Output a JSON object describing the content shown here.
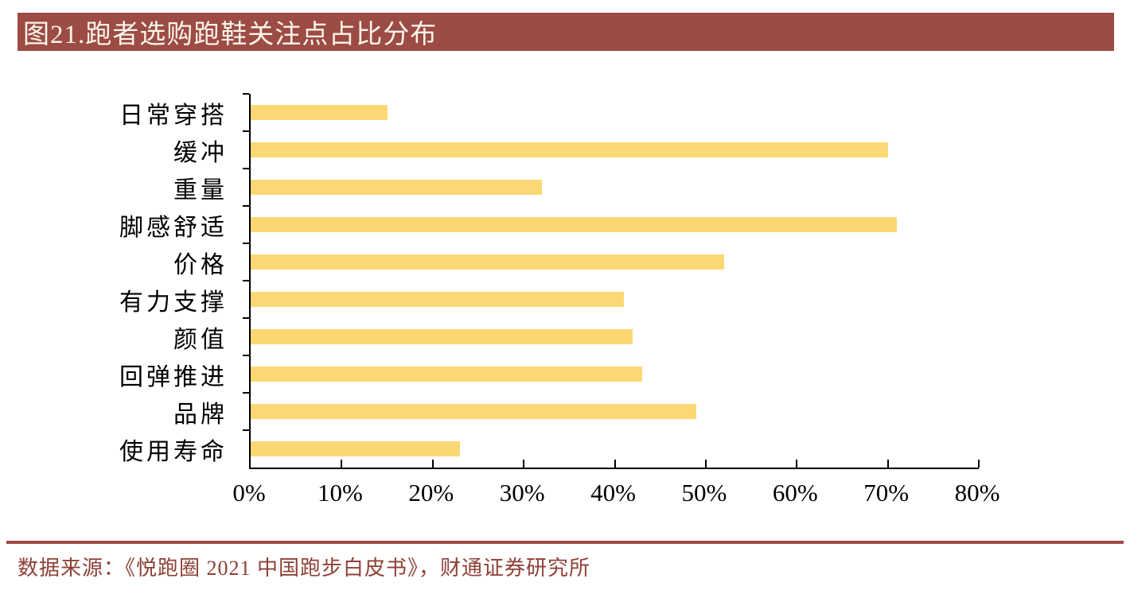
{
  "figure": {
    "title": "图21.跑者选购跑鞋关注点占比分布",
    "source_note": "数据来源：《悦跑圈 2021 中国跑步白皮书》，财通证券研究所"
  },
  "colors": {
    "title_bg": "#9C4B45",
    "title_text": "#FCF5E9",
    "bar_fill": "#FCD874",
    "axis": "#000000",
    "divider": "#9C4B45",
    "source_text": "#8E4037"
  },
  "chart_data": {
    "type": "bar",
    "orientation": "horizontal",
    "title": "跑者选购跑鞋关注点占比分布",
    "categories": [
      "日常穿搭",
      "缓冲",
      "重量",
      "脚感舒适",
      "价格",
      "有力支撑",
      "颜值",
      "回弹推进",
      "品牌",
      "使用寿命"
    ],
    "values": [
      15,
      70,
      32,
      71,
      52,
      41,
      42,
      43,
      49,
      23
    ],
    "value_unit": "%",
    "xlabel": "",
    "ylabel": "",
    "xlim": [
      0,
      80
    ],
    "x_tick_labels": [
      "0%",
      "10%",
      "20%",
      "30%",
      "40%",
      "50%",
      "60%",
      "70%",
      "80%"
    ],
    "x_tick_step": 10,
    "grid": false,
    "legend": false
  }
}
